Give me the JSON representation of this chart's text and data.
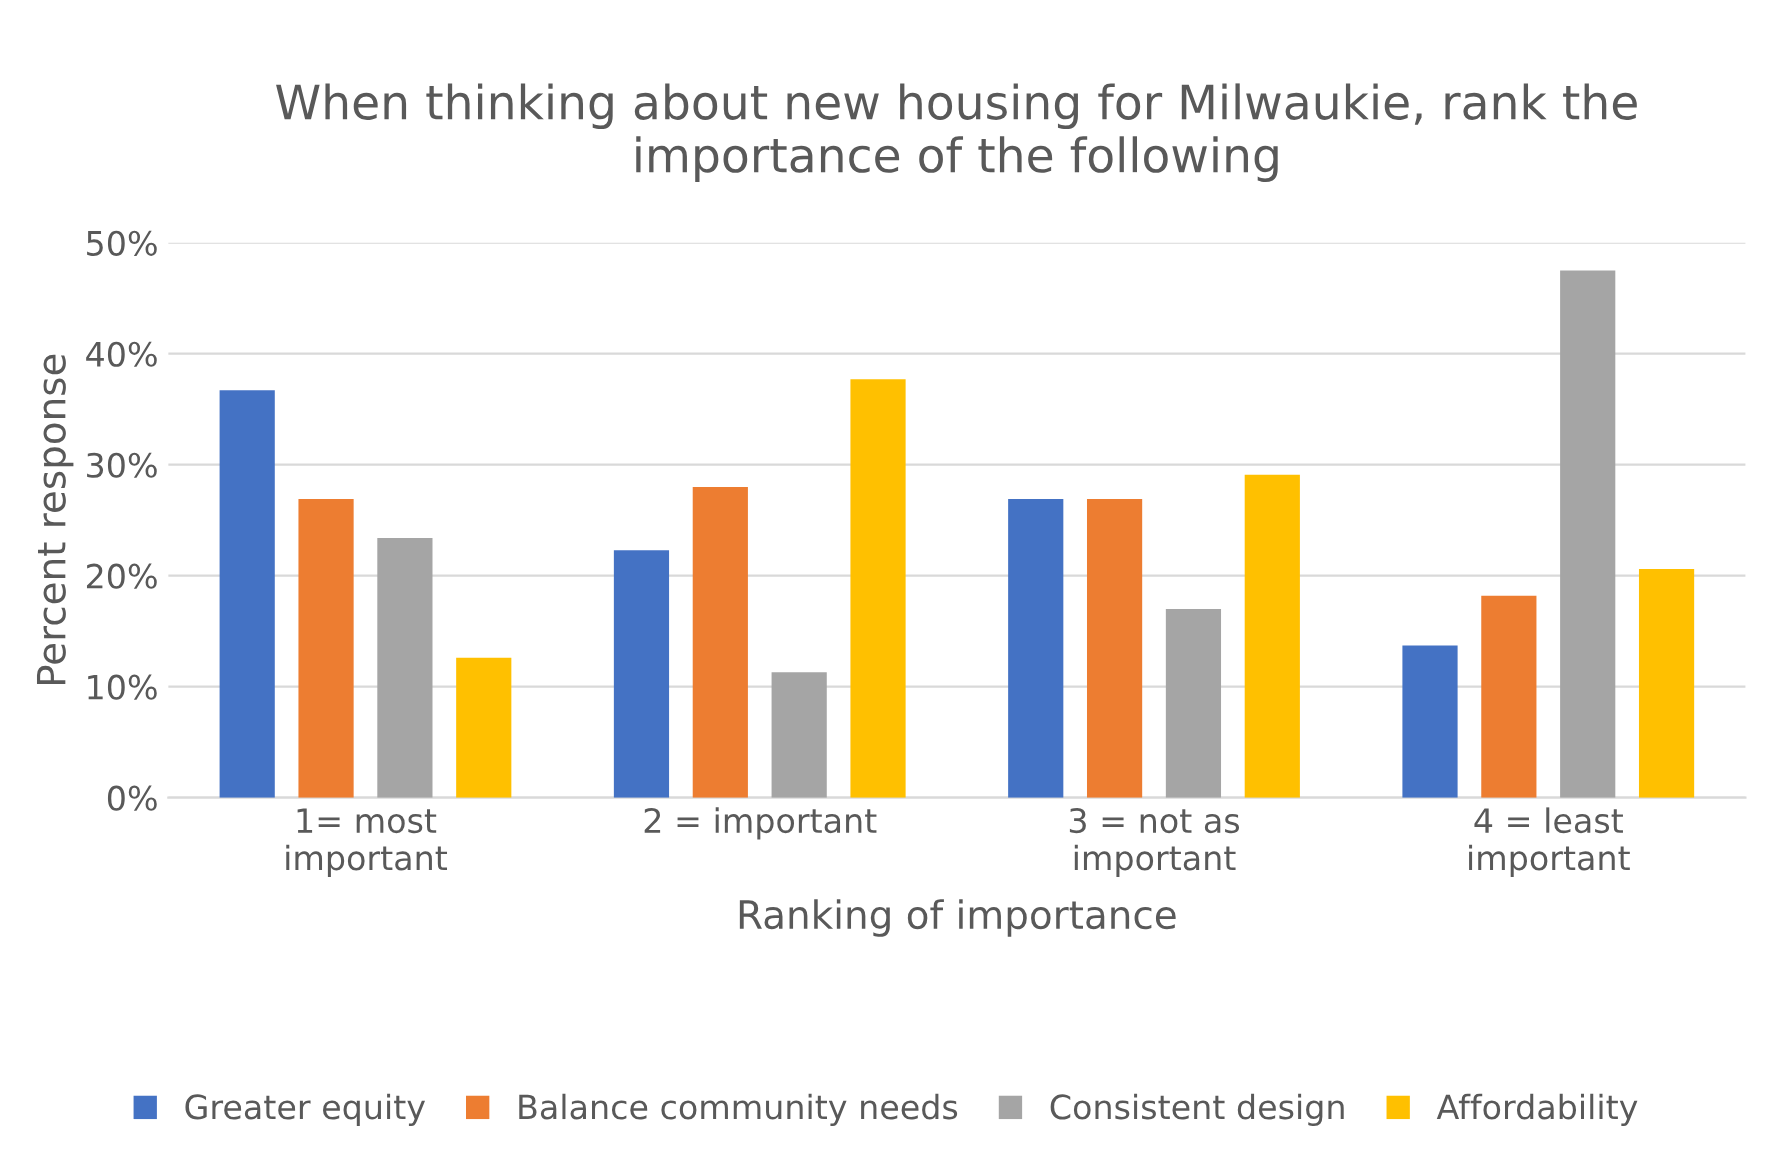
{
  "chart_data": {
    "type": "bar",
    "title": "When thinking about new housing for Milwaukie, rank the importance of the following",
    "xlabel": "Ranking of importance",
    "ylabel": "Percent response",
    "categories": [
      "1= most\nimportant",
      "2 = important",
      "3 = not as\nimportant",
      "4 = least\nimportant"
    ],
    "series": [
      {
        "name": "Greater equity",
        "color": "#4472c4",
        "values": [
          36.7,
          22.3,
          26.9,
          13.7
        ]
      },
      {
        "name": "Balance community needs",
        "color": "#ed7d31",
        "values": [
          26.9,
          28.0,
          26.9,
          18.2
        ]
      },
      {
        "name": "Consistent design",
        "color": "#a5a5a5",
        "values": [
          23.4,
          11.3,
          17.0,
          47.5
        ]
      },
      {
        "name": "Affordability",
        "color": "#ffc000",
        "values": [
          12.6,
          37.7,
          29.1,
          20.6
        ]
      }
    ],
    "ylim": [
      0,
      50
    ],
    "yticks": [
      {
        "value": 0,
        "label": "0%"
      },
      {
        "value": 10,
        "label": "10%"
      },
      {
        "value": 20,
        "label": "20%"
      },
      {
        "value": 30,
        "label": "30%"
      },
      {
        "value": 40,
        "label": "40%"
      },
      {
        "value": 50,
        "label": "50%"
      }
    ],
    "grid": "y",
    "legend": "bottom"
  }
}
